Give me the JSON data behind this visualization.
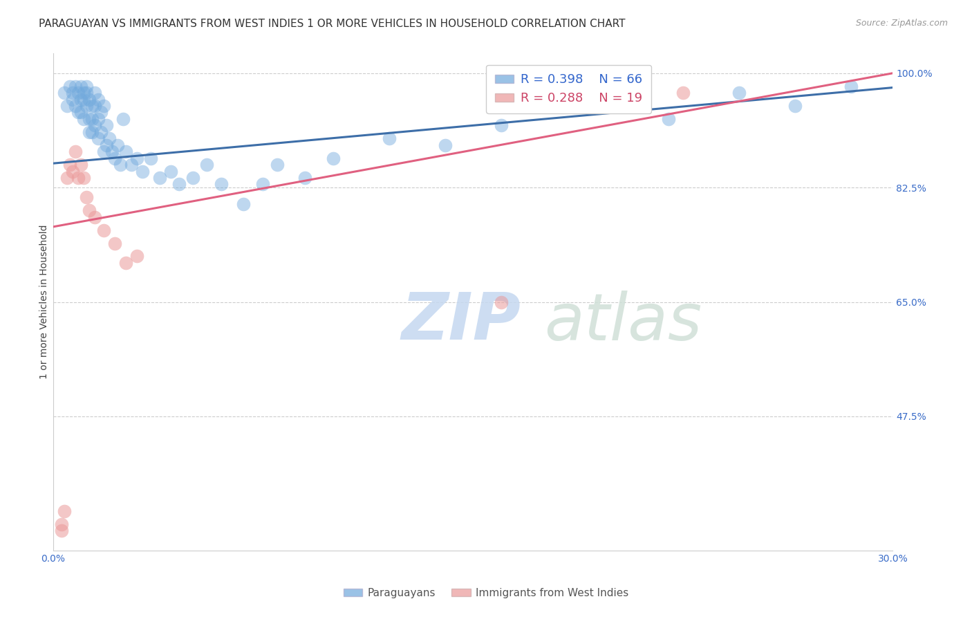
{
  "title": "PARAGUAYAN VS IMMIGRANTS FROM WEST INDIES 1 OR MORE VEHICLES IN HOUSEHOLD CORRELATION CHART",
  "source": "Source: ZipAtlas.com",
  "ylabel": "1 or more Vehicles in Household",
  "xlim": [
    0.0,
    0.3
  ],
  "ylim": [
    0.27,
    1.03
  ],
  "xticks": [
    0.0,
    0.075,
    0.15,
    0.225,
    0.3
  ],
  "xtick_labels": [
    "0.0%",
    "",
    "",
    "",
    "30.0%"
  ],
  "yticks": [
    0.475,
    0.65,
    0.825,
    1.0
  ],
  "ytick_labels": [
    "47.5%",
    "65.0%",
    "82.5%",
    "100.0%"
  ],
  "blue_R": 0.398,
  "blue_N": 66,
  "pink_R": 0.288,
  "pink_N": 19,
  "blue_color": "#6fa8dc",
  "pink_color": "#ea9999",
  "blue_line_color": "#3d6ea8",
  "pink_line_color": "#e06080",
  "legend_label_blue": "Paraguayans",
  "legend_label_pink": "Immigrants from West Indies",
  "watermark": "ZIPatlas",
  "blue_x": [
    0.004,
    0.005,
    0.006,
    0.007,
    0.007,
    0.008,
    0.008,
    0.009,
    0.009,
    0.01,
    0.01,
    0.01,
    0.011,
    0.011,
    0.011,
    0.012,
    0.012,
    0.012,
    0.013,
    0.013,
    0.013,
    0.014,
    0.014,
    0.014,
    0.015,
    0.015,
    0.015,
    0.016,
    0.016,
    0.016,
    0.017,
    0.017,
    0.018,
    0.018,
    0.019,
    0.019,
    0.02,
    0.021,
    0.022,
    0.023,
    0.024,
    0.025,
    0.026,
    0.028,
    0.03,
    0.032,
    0.035,
    0.038,
    0.042,
    0.045,
    0.05,
    0.055,
    0.06,
    0.068,
    0.075,
    0.08,
    0.09,
    0.1,
    0.12,
    0.14,
    0.16,
    0.19,
    0.22,
    0.245,
    0.265,
    0.285
  ],
  "blue_y": [
    0.97,
    0.95,
    0.98,
    0.97,
    0.96,
    0.98,
    0.95,
    0.97,
    0.94,
    0.98,
    0.96,
    0.94,
    0.97,
    0.96,
    0.93,
    0.98,
    0.97,
    0.95,
    0.96,
    0.93,
    0.91,
    0.95,
    0.93,
    0.91,
    0.97,
    0.95,
    0.92,
    0.96,
    0.93,
    0.9,
    0.94,
    0.91,
    0.95,
    0.88,
    0.92,
    0.89,
    0.9,
    0.88,
    0.87,
    0.89,
    0.86,
    0.93,
    0.88,
    0.86,
    0.87,
    0.85,
    0.87,
    0.84,
    0.85,
    0.83,
    0.84,
    0.86,
    0.83,
    0.8,
    0.83,
    0.86,
    0.84,
    0.87,
    0.9,
    0.89,
    0.92,
    0.95,
    0.93,
    0.97,
    0.95,
    0.98
  ],
  "pink_x": [
    0.003,
    0.003,
    0.004,
    0.005,
    0.006,
    0.007,
    0.008,
    0.009,
    0.01,
    0.011,
    0.012,
    0.013,
    0.015,
    0.018,
    0.022,
    0.026,
    0.03,
    0.16,
    0.225
  ],
  "pink_y": [
    0.3,
    0.31,
    0.33,
    0.84,
    0.86,
    0.85,
    0.88,
    0.84,
    0.86,
    0.84,
    0.81,
    0.79,
    0.78,
    0.76,
    0.74,
    0.71,
    0.72,
    0.65,
    0.97
  ],
  "blue_line_x": [
    0.0,
    0.3
  ],
  "blue_line_y": [
    0.862,
    0.978
  ],
  "pink_line_x": [
    0.0,
    0.3
  ],
  "pink_line_y": [
    0.765,
    1.0
  ],
  "grid_color": "#cccccc",
  "background_color": "#ffffff",
  "title_fontsize": 11,
  "axis_label_fontsize": 10,
  "tick_fontsize": 10,
  "watermark_color": "#ccdcee",
  "watermark_fontsize": 68
}
